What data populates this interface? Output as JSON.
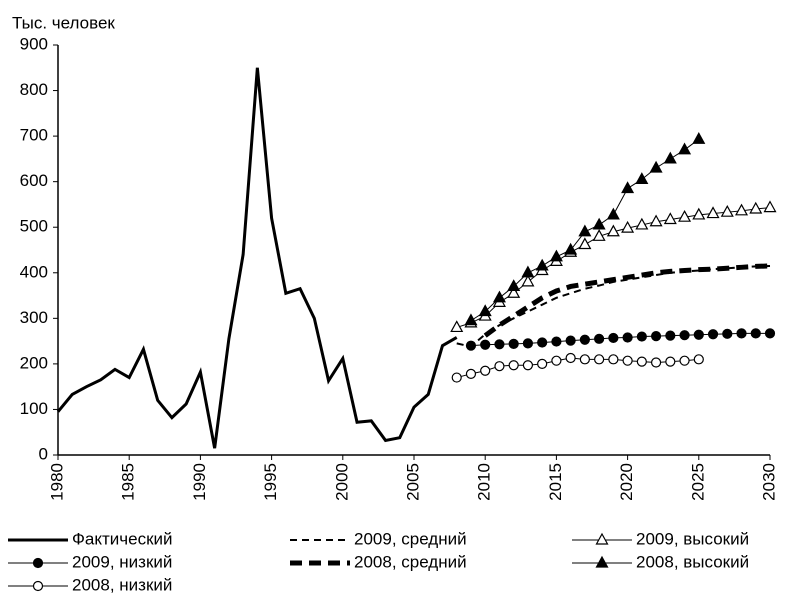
{
  "chart_data": {
    "type": "line",
    "y_label": "Тыс. человек",
    "xlim": [
      1980,
      2030
    ],
    "xticks": [
      1980,
      1985,
      1990,
      1995,
      2000,
      2005,
      2010,
      2015,
      2020,
      2025,
      2030
    ],
    "ylim": [
      0,
      900
    ],
    "yticks": [
      0,
      100,
      200,
      300,
      400,
      500,
      600,
      700,
      800,
      900
    ],
    "grid": false,
    "legend": "bottom",
    "series": [
      {
        "name": "Фактический",
        "color": "#000000",
        "dash": "solid",
        "width": 3,
        "marker": "none",
        "x": [
          1980,
          1981,
          1982,
          1983,
          1984,
          1985,
          1986,
          1987,
          1988,
          1989,
          1990,
          1991,
          1992,
          1993,
          1994,
          1995,
          1996,
          1997,
          1998,
          1999,
          2000,
          2001,
          2002,
          2003,
          2004,
          2005,
          2006,
          2007,
          2008
        ],
        "values": [
          95,
          133,
          150,
          165,
          188,
          170,
          232,
          120,
          82,
          112,
          182,
          15,
          255,
          440,
          850,
          520,
          355,
          365,
          300,
          163,
          212,
          72,
          75,
          32,
          38,
          105,
          133,
          240,
          258
        ]
      },
      {
        "name": "2009, средний",
        "color": "#000000",
        "dash": "dashed",
        "width": 2,
        "marker": "none",
        "x": [
          2008,
          2009,
          2010,
          2011,
          2012,
          2013,
          2014,
          2015,
          2016,
          2017,
          2018,
          2019,
          2020,
          2021,
          2022,
          2023,
          2024,
          2025,
          2026,
          2027,
          2028,
          2029,
          2030
        ],
        "values": [
          245,
          238,
          265,
          285,
          300,
          315,
          330,
          345,
          355,
          365,
          372,
          380,
          385,
          390,
          395,
          400,
          403,
          405,
          408,
          410,
          412,
          414,
          415
        ]
      },
      {
        "name": "2009, высокий",
        "color": "#000000",
        "dash": "solid",
        "width": 1,
        "marker": "triangle-open",
        "x": [
          2008,
          2009,
          2010,
          2011,
          2012,
          2013,
          2014,
          2015,
          2016,
          2017,
          2018,
          2019,
          2020,
          2021,
          2022,
          2023,
          2024,
          2025,
          2026,
          2027,
          2028,
          2029,
          2030
        ],
        "values": [
          280,
          290,
          305,
          335,
          355,
          380,
          405,
          425,
          445,
          462,
          480,
          490,
          498,
          505,
          512,
          517,
          522,
          527,
          530,
          533,
          536,
          540,
          543
        ]
      },
      {
        "name": "2009, низкий",
        "color": "#000000",
        "dash": "solid",
        "width": 1,
        "marker": "circle-filled",
        "x": [
          2009,
          2010,
          2011,
          2012,
          2013,
          2014,
          2015,
          2016,
          2017,
          2018,
          2019,
          2020,
          2021,
          2022,
          2023,
          2024,
          2025,
          2026,
          2027,
          2028,
          2029,
          2030
        ],
        "values": [
          240,
          242,
          243,
          244,
          245,
          247,
          249,
          251,
          253,
          255,
          257,
          258,
          260,
          261,
          262,
          263,
          264,
          265,
          266,
          267,
          267,
          267
        ]
      },
      {
        "name": "2008, средний",
        "color": "#000000",
        "dash": "dashed",
        "width": 5,
        "marker": "none",
        "x": [
          2010,
          2011,
          2012,
          2013,
          2014,
          2015,
          2016,
          2017,
          2018,
          2019,
          2020,
          2021,
          2022,
          2023,
          2024,
          2025,
          2026,
          2027,
          2028,
          2029,
          2030
        ],
        "values": [
          262,
          285,
          305,
          325,
          345,
          360,
          370,
          375,
          380,
          385,
          390,
          395,
          400,
          403,
          405,
          407,
          408,
          410,
          412,
          414,
          415
        ]
      },
      {
        "name": "2008, высокий",
        "color": "#000000",
        "dash": "solid",
        "width": 1,
        "marker": "triangle-filled",
        "x": [
          2009,
          2010,
          2011,
          2012,
          2013,
          2014,
          2015,
          2016,
          2017,
          2018,
          2019,
          2020,
          2021,
          2022,
          2023,
          2024,
          2025
        ],
        "values": [
          295,
          315,
          345,
          370,
          400,
          415,
          435,
          450,
          490,
          505,
          527,
          585,
          605,
          630,
          650,
          670,
          693
        ]
      },
      {
        "name": "2008, низкий",
        "color": "#000000",
        "dash": "solid",
        "width": 1,
        "marker": "circle-open",
        "x": [
          2008,
          2009,
          2010,
          2011,
          2012,
          2013,
          2014,
          2015,
          2016,
          2017,
          2018,
          2019,
          2020,
          2021,
          2022,
          2023,
          2024,
          2025
        ],
        "values": [
          170,
          178,
          185,
          195,
          197,
          197,
          200,
          207,
          213,
          210,
          210,
          210,
          207,
          205,
          203,
          205,
          207,
          210
        ]
      }
    ]
  }
}
